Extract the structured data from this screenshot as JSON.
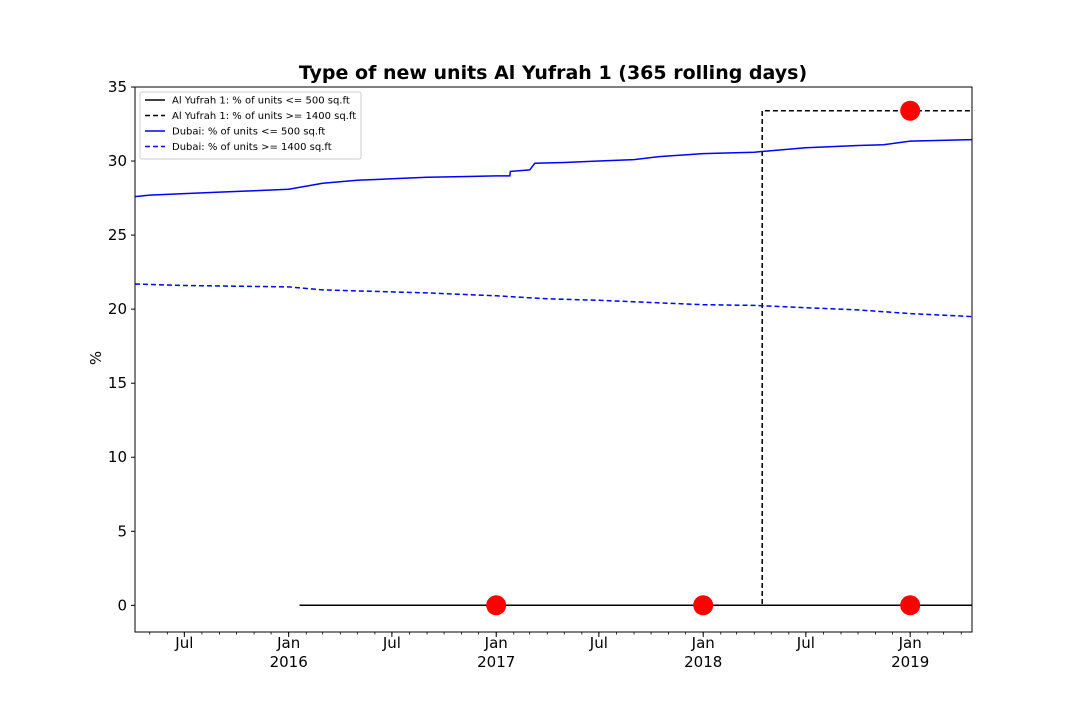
{
  "chart_data": {
    "type": "line",
    "title": "Type of new units Al Yufrah 1 (365 rolling days)",
    "xlabel": "",
    "ylabel": "%",
    "ylim": [
      -1.8,
      35
    ],
    "xlim": [
      "2015-04-05",
      "2019-04-20"
    ],
    "yticks": [
      0,
      5,
      10,
      15,
      20,
      25,
      30,
      35
    ],
    "xticks": [
      {
        "date": "2015-07-01",
        "label": "Jul",
        "sub": ""
      },
      {
        "date": "2016-01-01",
        "label": "Jan",
        "sub": "2016"
      },
      {
        "date": "2016-07-01",
        "label": "Jul",
        "sub": ""
      },
      {
        "date": "2017-01-01",
        "label": "Jan",
        "sub": "2017"
      },
      {
        "date": "2017-07-01",
        "label": "Jul",
        "sub": ""
      },
      {
        "date": "2018-01-01",
        "label": "Jan",
        "sub": "2018"
      },
      {
        "date": "2018-07-01",
        "label": "Jul",
        "sub": ""
      },
      {
        "date": "2019-01-01",
        "label": "Jan",
        "sub": "2019"
      }
    ],
    "grid": false,
    "legend_position": "top-left",
    "series": [
      {
        "name": "Al Yufrah 1: % of units <= 500 sq.ft",
        "color": "#000000",
        "dash": "solid",
        "step": true,
        "points": [
          [
            "2016-01-20",
            0
          ],
          [
            "2019-04-20",
            0
          ]
        ]
      },
      {
        "name": "Al Yufrah 1: % of units >= 1400 sq.ft",
        "color": "#000000",
        "dash": "dashed",
        "step": true,
        "points": [
          [
            "2016-01-20",
            0
          ],
          [
            "2018-04-15",
            0
          ],
          [
            "2018-04-15",
            33.4
          ],
          [
            "2019-04-20",
            33.4
          ]
        ]
      },
      {
        "name": "Dubai: % of units <= 500 sq.ft",
        "color": "#0000ff",
        "dash": "solid",
        "step": false,
        "points": [
          [
            "2015-04-05",
            27.6
          ],
          [
            "2015-05-01",
            27.7
          ],
          [
            "2015-07-01",
            27.8
          ],
          [
            "2015-09-01",
            27.9
          ],
          [
            "2015-11-01",
            28.0
          ],
          [
            "2016-01-01",
            28.1
          ],
          [
            "2016-03-01",
            28.5
          ],
          [
            "2016-05-01",
            28.7
          ],
          [
            "2016-07-01",
            28.8
          ],
          [
            "2016-09-01",
            28.9
          ],
          [
            "2016-11-01",
            28.95
          ],
          [
            "2017-01-01",
            29.0
          ],
          [
            "2017-01-25",
            29.0
          ],
          [
            "2017-01-26",
            29.3
          ],
          [
            "2017-03-01",
            29.4
          ],
          [
            "2017-03-10",
            29.85
          ],
          [
            "2017-05-01",
            29.9
          ],
          [
            "2017-07-01",
            30.0
          ],
          [
            "2017-09-01",
            30.1
          ],
          [
            "2017-10-15",
            30.3
          ],
          [
            "2018-01-01",
            30.5
          ],
          [
            "2018-04-01",
            30.6
          ],
          [
            "2018-07-01",
            30.9
          ],
          [
            "2018-10-01",
            31.05
          ],
          [
            "2018-11-15",
            31.1
          ],
          [
            "2019-01-01",
            31.35
          ],
          [
            "2019-04-20",
            31.45
          ]
        ]
      },
      {
        "name": "Dubai: % of units >= 1400 sq.ft",
        "color": "#0000ff",
        "dash": "dashed",
        "step": false,
        "points": [
          [
            "2015-04-05",
            21.7
          ],
          [
            "2015-07-01",
            21.6
          ],
          [
            "2015-10-01",
            21.55
          ],
          [
            "2016-01-01",
            21.5
          ],
          [
            "2016-03-01",
            21.3
          ],
          [
            "2016-06-01",
            21.2
          ],
          [
            "2016-09-01",
            21.1
          ],
          [
            "2017-01-01",
            20.9
          ],
          [
            "2017-04-01",
            20.7
          ],
          [
            "2017-07-01",
            20.6
          ],
          [
            "2017-10-01",
            20.45
          ],
          [
            "2018-01-01",
            20.3
          ],
          [
            "2018-04-01",
            20.25
          ],
          [
            "2018-07-01",
            20.1
          ],
          [
            "2018-10-01",
            19.95
          ],
          [
            "2019-01-01",
            19.7
          ],
          [
            "2019-04-20",
            19.5
          ]
        ]
      }
    ],
    "markers": {
      "color": "#ff0000",
      "points": [
        [
          "2017-01-01",
          0
        ],
        [
          "2018-01-01",
          0
        ],
        [
          "2019-01-01",
          0
        ],
        [
          "2019-01-01",
          33.4
        ]
      ]
    }
  }
}
